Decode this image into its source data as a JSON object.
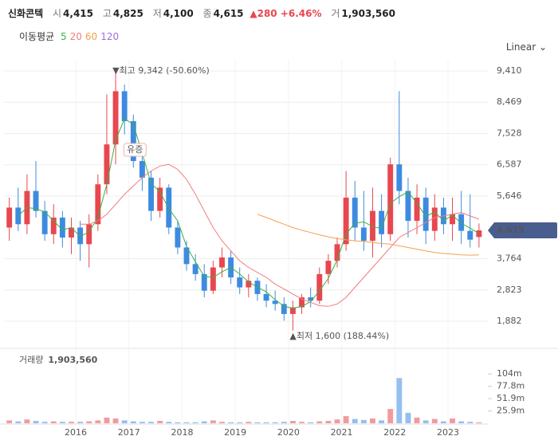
{
  "header": {
    "name": "신화콘텍",
    "items": [
      {
        "label": "시",
        "value": "4,415"
      },
      {
        "label": "고",
        "value": "4,825"
      },
      {
        "label": "저",
        "value": "4,100"
      },
      {
        "label": "종",
        "value": "4,615"
      },
      {
        "label": "거",
        "value": "1,903,560"
      }
    ],
    "change": "▲280 +6.46%"
  },
  "chart_data": {
    "type": "candlestick",
    "ma_title": "이동평균",
    "scale_label": "Linear",
    "volume_title": "거래량",
    "high_annotation": "▼최고 9,342 (-50.60%)",
    "low_annotation": "▲최저 1,600 (188.44%)",
    "event_label": "유증",
    "up_color": "#e8474f",
    "down_color": "#3d8be0",
    "grid": true,
    "xlim": [
      -0.6,
      54.0
    ],
    "xticks": [
      {
        "value": 7.5,
        "label": "2016"
      },
      {
        "value": 13.5,
        "label": "2017"
      },
      {
        "value": 19.5,
        "label": "2018"
      },
      {
        "value": 25.5,
        "label": "2019"
      },
      {
        "value": 31.5,
        "label": "2020"
      },
      {
        "value": 37.5,
        "label": "2021"
      },
      {
        "value": 43.5,
        "label": "2022"
      },
      {
        "value": 49.5,
        "label": "2023"
      }
    ],
    "ylim": [
      1235,
      9745
    ],
    "yticks": [
      {
        "value": 1882,
        "label": "1,882"
      },
      {
        "value": 2823,
        "label": "2,823"
      },
      {
        "value": 3764,
        "label": "3,764"
      },
      {
        "value": 5646,
        "label": "5,646"
      },
      {
        "value": 6587,
        "label": "6,587"
      },
      {
        "value": 7528,
        "label": "7,528"
      },
      {
        "value": 8469,
        "label": "8,469"
      },
      {
        "value": 9410,
        "label": "9,410"
      }
    ],
    "vlim": [
      0,
      135800000
    ],
    "vticks": [
      {
        "value": 25900000,
        "label": "25.9m"
      },
      {
        "value": 51900000,
        "label": "51.9m"
      },
      {
        "value": 77800000,
        "label": "77.8m"
      },
      {
        "value": 103800000,
        "label": "104m"
      }
    ],
    "open": [
      4700,
      5300,
      4800,
      5800,
      5200,
      4500,
      5000,
      4400,
      4700,
      4200,
      4800,
      6000,
      7200,
      8800,
      7900,
      6700,
      6200,
      5200,
      5900,
      4700,
      4100,
      3600,
      3300,
      2800,
      3500,
      3800,
      3200,
      2900,
      3100,
      2700,
      2500,
      2400,
      2100,
      2300,
      2600,
      2500,
      3300,
      3700,
      4200,
      5600,
      4700,
      4300,
      5200,
      4500,
      6600,
      5800,
      4900,
      5600,
      4600,
      5300,
      4800,
      5100,
      4600,
      4415
    ],
    "high": [
      5600,
      5900,
      6300,
      6700,
      5500,
      5400,
      5200,
      5000,
      4900,
      5100,
      6300,
      8700,
      9342,
      9000,
      8100,
      7000,
      6400,
      6200,
      6000,
      4900,
      4300,
      3900,
      3600,
      3700,
      4100,
      4000,
      3500,
      3300,
      3200,
      3000,
      2800,
      2600,
      2500,
      2700,
      2900,
      3500,
      3900,
      4400,
      6400,
      6100,
      5800,
      5900,
      5700,
      6800,
      8800,
      6200,
      6000,
      5900,
      5700,
      5600,
      5600,
      5800,
      5700,
      4825
    ],
    "low": [
      4300,
      4600,
      4500,
      5000,
      4300,
      4200,
      4100,
      3900,
      3700,
      3500,
      4600,
      5700,
      6600,
      7500,
      6500,
      5800,
      4900,
      5000,
      4500,
      3900,
      3400,
      3100,
      2600,
      2700,
      3200,
      3000,
      2700,
      2600,
      2500,
      2300,
      2200,
      1900,
      1600,
      2100,
      2300,
      2400,
      3000,
      3500,
      4000,
      4300,
      4000,
      3800,
      4100,
      4300,
      5400,
      4400,
      4500,
      4200,
      4300,
      4500,
      4300,
      4200,
      4100,
      4100
    ],
    "close": [
      5300,
      4800,
      5800,
      5200,
      4500,
      5000,
      4400,
      4700,
      4200,
      4800,
      6000,
      7200,
      8800,
      7900,
      6700,
      6200,
      5200,
      5900,
      4700,
      4100,
      3600,
      3300,
      2800,
      3500,
      3800,
      3200,
      2900,
      3100,
      2700,
      2500,
      2400,
      2100,
      2300,
      2600,
      2500,
      3300,
      3700,
      4200,
      5600,
      4700,
      4300,
      5200,
      4500,
      6600,
      5800,
      4900,
      5600,
      4600,
      5300,
      4800,
      5100,
      4600,
      4335,
      4615
    ],
    "volume": [
      6000000,
      4000000,
      8000000,
      5000000,
      3000000,
      4000000,
      3000000,
      3000000,
      3000000,
      4000000,
      6000000,
      12000000,
      10000000,
      6000000,
      4000000,
      3000000,
      3000000,
      5000000,
      3000000,
      2000000,
      2000000,
      2000000,
      4000000,
      6000000,
      3000000,
      2000000,
      2000000,
      3000000,
      2000000,
      2000000,
      2000000,
      3000000,
      5000000,
      3000000,
      2000000,
      4000000,
      5000000,
      8000000,
      15000000,
      9000000,
      7000000,
      10000000,
      6000000,
      30000000,
      95000000,
      22000000,
      12000000,
      6000000,
      9000000,
      4000000,
      10000000,
      4000000,
      3000000,
      1903560
    ],
    "ma": [
      {
        "name": "5",
        "color": "#3cb043",
        "values": [
          null,
          5050,
          5300,
          5270,
          5170,
          4900,
          4630,
          4700,
          4430,
          4570,
          5000,
          6000,
          7330,
          7970,
          7800,
          6930,
          6030,
          5770,
          5270,
          4900,
          4130,
          3670,
          3230,
          3200,
          3370,
          3500,
          3300,
          3070,
          2900,
          2770,
          2530,
          2330,
          2270,
          2330,
          2470,
          2800,
          3170,
          3730,
          4500,
          4830,
          4870,
          4730,
          4670,
          5430,
          5630,
          5770,
          5430,
          5030,
          5170,
          4900,
          5070,
          4830,
          4680,
          4520
        ]
      },
      {
        "name": "20",
        "color": "#f27c7c",
        "values": [
          null,
          null,
          null,
          null,
          null,
          null,
          null,
          null,
          4800,
          4800,
          4900,
          5100,
          5400,
          5700,
          5950,
          6200,
          6400,
          6550,
          6600,
          6450,
          6150,
          5700,
          5200,
          4700,
          4300,
          4000,
          3700,
          3500,
          3350,
          3200,
          3000,
          2850,
          2700,
          2550,
          2450,
          2350,
          2330,
          2400,
          2600,
          2900,
          3200,
          3500,
          3800,
          4100,
          4400,
          4550,
          4700,
          4850,
          5000,
          5050,
          5100,
          5150,
          5050,
          4950
        ]
      },
      {
        "name": "60",
        "color": "#f5a04a",
        "values": [
          null,
          null,
          null,
          null,
          null,
          null,
          null,
          null,
          null,
          null,
          null,
          null,
          null,
          null,
          null,
          null,
          null,
          null,
          null,
          null,
          null,
          null,
          null,
          null,
          null,
          null,
          null,
          null,
          5100,
          5000,
          4900,
          4800,
          4700,
          4620,
          4550,
          4480,
          4420,
          4370,
          4330,
          4300,
          4280,
          4250,
          4220,
          4200,
          4150,
          4100,
          4050,
          4000,
          3950,
          3920,
          3900,
          3880,
          3870,
          3880
        ]
      },
      {
        "name": "120",
        "color": "#9b6fd8",
        "values": [
          null,
          null,
          null,
          null,
          null,
          null,
          null,
          null,
          null,
          null,
          null,
          null,
          null,
          null,
          null,
          null,
          null,
          null,
          null,
          null,
          null,
          null,
          null,
          null,
          null,
          null,
          null,
          null,
          null,
          null,
          null,
          null,
          null,
          null,
          null,
          null,
          null,
          null,
          null,
          null,
          null,
          null,
          null,
          null,
          null,
          null,
          null,
          null,
          null,
          null,
          null,
          null,
          null,
          null
        ]
      }
    ]
  }
}
